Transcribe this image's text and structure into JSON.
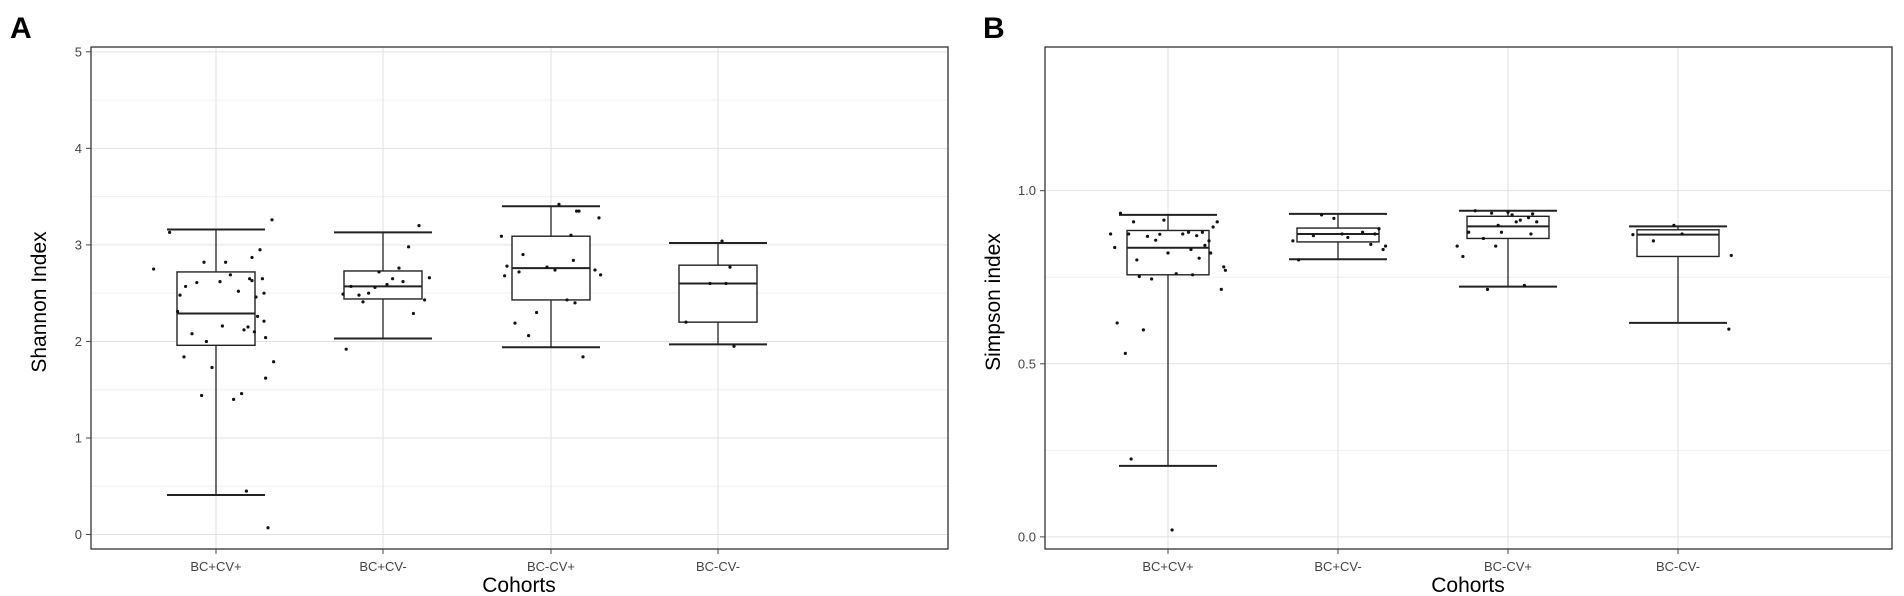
{
  "chart_data": [
    {
      "panel_label": "A",
      "type": "box",
      "xlabel": "Cohorts",
      "ylabel": "Shannon Index",
      "ylim": [
        -0.15,
        5.05
      ],
      "yticks": [
        0,
        1,
        2,
        3,
        4,
        5
      ],
      "grid": true,
      "categories": [
        "BC+CV+",
        "BC+CV-",
        "BC-CV+",
        "BC-CV-"
      ],
      "boxes": [
        {
          "category": "BC+CV+",
          "whisker_low": 0.41,
          "q1": 1.96,
          "median": 2.29,
          "q3": 2.72,
          "whisker_high": 3.16
        },
        {
          "category": "BC+CV-",
          "whisker_low": 2.03,
          "q1": 2.44,
          "median": 2.57,
          "q3": 2.73,
          "whisker_high": 3.13
        },
        {
          "category": "BC-CV+",
          "whisker_low": 1.94,
          "q1": 2.43,
          "median": 2.76,
          "q3": 3.09,
          "whisker_high": 3.4
        },
        {
          "category": "BC-CV-",
          "whisker_low": 1.97,
          "q1": 2.2,
          "median": 2.6,
          "q3": 2.79,
          "whisker_high": 3.02
        }
      ],
      "points": [
        {
          "category": "BC+CV+",
          "jitter": [
            -0.78,
            -0.58,
            -0.48,
            -0.45,
            -0.4,
            -0.38,
            -0.3,
            -0.24,
            -0.18,
            -0.15,
            -0.12,
            -0.05,
            0.05,
            0.08,
            0.12,
            0.18,
            0.22,
            0.28,
            0.32,
            0.35,
            0.38,
            0.4,
            0.42,
            0.45,
            0.45,
            0.48,
            0.5,
            0.52,
            0.55,
            0.58,
            0.6,
            0.6,
            0.62,
            0.62,
            0.65,
            0.7,
            0.72
          ],
          "values": [
            2.75,
            3.13,
            2.31,
            2.48,
            1.84,
            2.57,
            2.08,
            2.61,
            1.44,
            2.82,
            2.0,
            1.73,
            2.62,
            2.16,
            2.82,
            2.69,
            1.4,
            2.52,
            1.46,
            2.12,
            0.45,
            2.15,
            2.65,
            2.63,
            2.87,
            2.1,
            2.46,
            2.26,
            2.95,
            2.65,
            2.5,
            2.21,
            1.62,
            2.04,
            0.07,
            3.26,
            1.79
          ]
        },
        {
          "category": "BC+CV-",
          "jitter": [
            -0.5,
            -0.46,
            -0.4,
            -0.3,
            -0.25,
            -0.18,
            -0.1,
            -0.05,
            0.05,
            0.12,
            0.2,
            0.25,
            0.32,
            0.38,
            0.45,
            0.52,
            0.58
          ],
          "values": [
            2.49,
            1.92,
            2.57,
            2.48,
            2.41,
            2.5,
            2.56,
            2.72,
            2.59,
            2.65,
            2.76,
            2.62,
            2.98,
            2.29,
            3.2,
            2.43,
            2.66
          ]
        },
        {
          "category": "BC-CV+",
          "jitter": [
            -0.62,
            -0.58,
            -0.55,
            -0.45,
            -0.4,
            -0.35,
            -0.28,
            -0.18,
            -0.05,
            0.05,
            0.1,
            0.2,
            0.25,
            0.28,
            0.3,
            0.32,
            0.35,
            0.4,
            0.55,
            0.6,
            0.62
          ],
          "values": [
            3.09,
            2.68,
            2.78,
            2.19,
            2.72,
            2.9,
            2.06,
            2.3,
            2.77,
            2.74,
            3.42,
            2.43,
            3.1,
            2.84,
            2.4,
            3.35,
            3.35,
            1.84,
            2.74,
            3.28,
            2.69
          ]
        },
        {
          "category": "BC-CV-",
          "jitter": [
            -0.4,
            -0.1,
            0.05,
            0.1,
            0.15,
            0.2
          ],
          "values": [
            2.2,
            2.6,
            3.04,
            2.6,
            2.77,
            1.95
          ]
        }
      ]
    },
    {
      "panel_label": "B",
      "type": "box",
      "xlabel": "Cohorts",
      "ylabel": "Simpson index",
      "ylim": [
        -0.035,
        1.415
      ],
      "yticks": [
        0.0,
        0.5,
        1.0
      ],
      "ytick_labels": [
        "0.0",
        "0.5",
        "1.0"
      ],
      "grid": true,
      "categories": [
        "BC+CV+",
        "BC+CV-",
        "BC-CV+",
        "BC-CV-"
      ],
      "boxes": [
        {
          "category": "BC+CV+",
          "whisker_low": 0.205,
          "q1": 0.757,
          "median": 0.835,
          "q3": 0.885,
          "whisker_high": 0.93
        },
        {
          "category": "BC+CV-",
          "whisker_low": 0.802,
          "q1": 0.852,
          "median": 0.875,
          "q3": 0.892,
          "whisker_high": 0.933
        },
        {
          "category": "BC-CV+",
          "whisker_low": 0.723,
          "q1": 0.862,
          "median": 0.897,
          "q3": 0.926,
          "whisker_high": 0.942
        },
        {
          "category": "BC-CV-",
          "whisker_low": 0.618,
          "q1": 0.81,
          "median": 0.873,
          "q3": 0.887,
          "whisker_high": 0.897
        }
      ],
      "points": [
        {
          "category": "BC+CV+",
          "jitter": [
            -0.7,
            -0.65,
            -0.62,
            -0.58,
            -0.52,
            -0.48,
            -0.45,
            -0.42,
            -0.38,
            -0.35,
            -0.3,
            -0.25,
            -0.2,
            -0.15,
            -0.1,
            -0.05,
            0.0,
            0.05,
            0.1,
            0.18,
            0.25,
            0.28,
            0.3,
            0.35,
            0.38,
            0.42,
            0.45,
            0.5,
            0.52,
            0.55,
            0.6,
            0.65,
            0.68,
            0.7
          ],
          "values": [
            0.875,
            0.836,
            0.618,
            0.935,
            0.53,
            0.875,
            0.225,
            0.91,
            0.8,
            0.752,
            0.598,
            0.868,
            0.745,
            0.857,
            0.874,
            0.915,
            0.82,
            0.02,
            0.76,
            0.875,
            0.88,
            0.83,
            0.757,
            0.87,
            0.805,
            0.88,
            0.842,
            0.855,
            0.82,
            0.895,
            0.91,
            0.715,
            0.78,
            0.77
          ]
        },
        {
          "category": "BC+CV-",
          "jitter": [
            -0.55,
            -0.48,
            -0.3,
            -0.2,
            -0.05,
            0.05,
            0.12,
            0.3,
            0.4,
            0.45,
            0.5,
            0.55,
            0.58
          ],
          "values": [
            0.855,
            0.8,
            0.87,
            0.93,
            0.92,
            0.875,
            0.865,
            0.88,
            0.845,
            0.875,
            0.89,
            0.83,
            0.84
          ]
        },
        {
          "category": "BC-CV+",
          "jitter": [
            -0.62,
            -0.55,
            -0.48,
            -0.4,
            -0.3,
            -0.25,
            -0.2,
            -0.15,
            -0.12,
            -0.08,
            0.0,
            0.05,
            0.1,
            0.15,
            0.2,
            0.25,
            0.28,
            0.3,
            0.35
          ],
          "values": [
            0.84,
            0.81,
            0.88,
            0.942,
            0.862,
            0.715,
            0.935,
            0.84,
            0.9,
            0.88,
            0.938,
            0.93,
            0.91,
            0.915,
            0.726,
            0.922,
            0.875,
            0.933,
            0.91
          ]
        },
        {
          "category": "BC-CV-",
          "jitter": [
            -0.55,
            -0.3,
            -0.05,
            0.05,
            0.62,
            0.65
          ],
          "values": [
            0.873,
            0.855,
            0.9,
            0.875,
            0.6,
            0.813
          ]
        }
      ]
    }
  ]
}
